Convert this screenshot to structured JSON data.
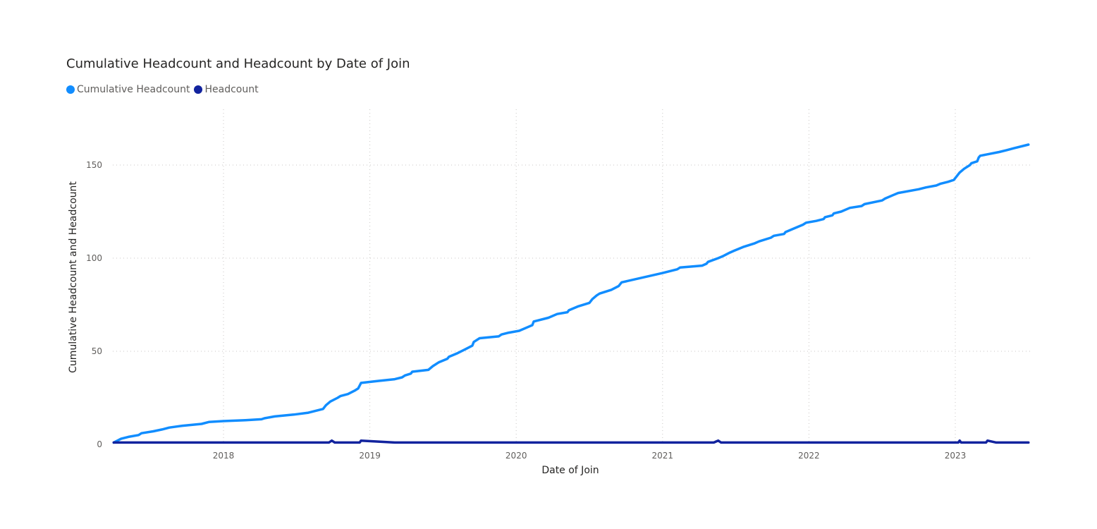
{
  "chart_data": {
    "type": "line",
    "title": "Cumulative Headcount and Headcount by Date of Join",
    "xlabel": "Date of Join",
    "ylabel": "Cumulative Headcount and Headcount",
    "x_ticks": [
      "2018",
      "2019",
      "2020",
      "2021",
      "2022",
      "2023"
    ],
    "y_ticks": [
      0,
      50,
      100,
      150
    ],
    "ylim": [
      0,
      175
    ],
    "xlim": [
      2017.2,
      2023.55
    ],
    "grid": true,
    "grid_style": "dotted",
    "legend_position": "top-left",
    "series": [
      {
        "name": "Cumulative Headcount",
        "color": "#118DFF",
        "x": [
          2017.25,
          2017.3,
          2017.35,
          2017.42,
          2017.44,
          2017.52,
          2017.58,
          2017.63,
          2017.72,
          2017.85,
          2017.9,
          2018.0,
          2018.15,
          2018.26,
          2018.28,
          2018.35,
          2018.48,
          2018.58,
          2018.68,
          2018.7,
          2018.73,
          2018.78,
          2018.8,
          2018.85,
          2018.9,
          2018.92,
          2018.94,
          2019.05,
          2019.17,
          2019.22,
          2019.24,
          2019.28,
          2019.29,
          2019.4,
          2019.43,
          2019.47,
          2019.53,
          2019.54,
          2019.6,
          2019.65,
          2019.7,
          2019.71,
          2019.75,
          2019.88,
          2019.9,
          2019.95,
          2020.02,
          2020.08,
          2020.11,
          2020.12,
          2020.22,
          2020.28,
          2020.35,
          2020.36,
          2020.42,
          2020.5,
          2020.52,
          2020.55,
          2020.57,
          2020.65,
          2020.7,
          2020.72,
          2021.0,
          2021.1,
          2021.12,
          2021.27,
          2021.3,
          2021.31,
          2021.38,
          2021.41,
          2021.46,
          2021.49,
          2021.55,
          2021.63,
          2021.66,
          2021.74,
          2021.76,
          2021.83,
          2021.84,
          2021.9,
          2021.96,
          2021.98,
          2022.05,
          2022.1,
          2022.11,
          2022.16,
          2022.17,
          2022.22,
          2022.28,
          2022.36,
          2022.38,
          2022.5,
          2022.52,
          2022.58,
          2022.61,
          2022.75,
          2022.8,
          2022.87,
          2022.9,
          2022.95,
          2022.99,
          2023.01,
          2023.03,
          2023.06,
          2023.1,
          2023.11,
          2023.15,
          2023.16,
          2023.17,
          2023.3,
          2023.35,
          2023.4,
          2023.5
        ],
        "values": [
          1,
          3,
          4,
          5,
          6,
          7,
          8,
          9,
          10,
          11,
          12,
          12.5,
          13,
          13.5,
          14,
          15,
          16,
          17,
          19,
          21,
          23,
          25,
          26,
          27,
          29,
          30,
          33,
          34,
          35,
          36,
          37,
          38,
          39,
          40,
          42,
          44,
          46,
          47,
          49,
          51,
          53,
          55,
          57,
          58,
          59,
          60,
          61,
          63,
          64,
          66,
          68,
          70,
          71,
          72,
          74,
          76,
          78,
          80,
          81,
          83,
          85,
          87,
          92,
          94,
          95,
          96,
          97,
          98,
          100,
          101,
          103,
          104,
          106,
          108,
          109,
          111,
          112,
          113,
          114,
          116,
          118,
          119,
          120,
          121,
          122,
          123,
          124,
          125,
          127,
          128,
          129,
          131,
          132,
          134,
          135,
          137,
          138,
          139,
          140,
          141,
          142,
          144,
          146,
          148,
          150,
          151,
          152,
          154,
          155,
          157,
          158,
          159,
          161
        ]
      },
      {
        "name": "Headcount",
        "color": "#12239E",
        "x": [
          2017.25,
          2018.72,
          2018.74,
          2018.76,
          2018.93,
          2018.94,
          2019.17,
          2021.35,
          2021.38,
          2021.4,
          2023.02,
          2023.03,
          2023.04,
          2023.21,
          2023.22,
          2023.28,
          2023.5
        ],
        "values": [
          1,
          1,
          2,
          1,
          1,
          2,
          1,
          1,
          2,
          1,
          1,
          2,
          1,
          1,
          2,
          1,
          1
        ]
      }
    ]
  }
}
